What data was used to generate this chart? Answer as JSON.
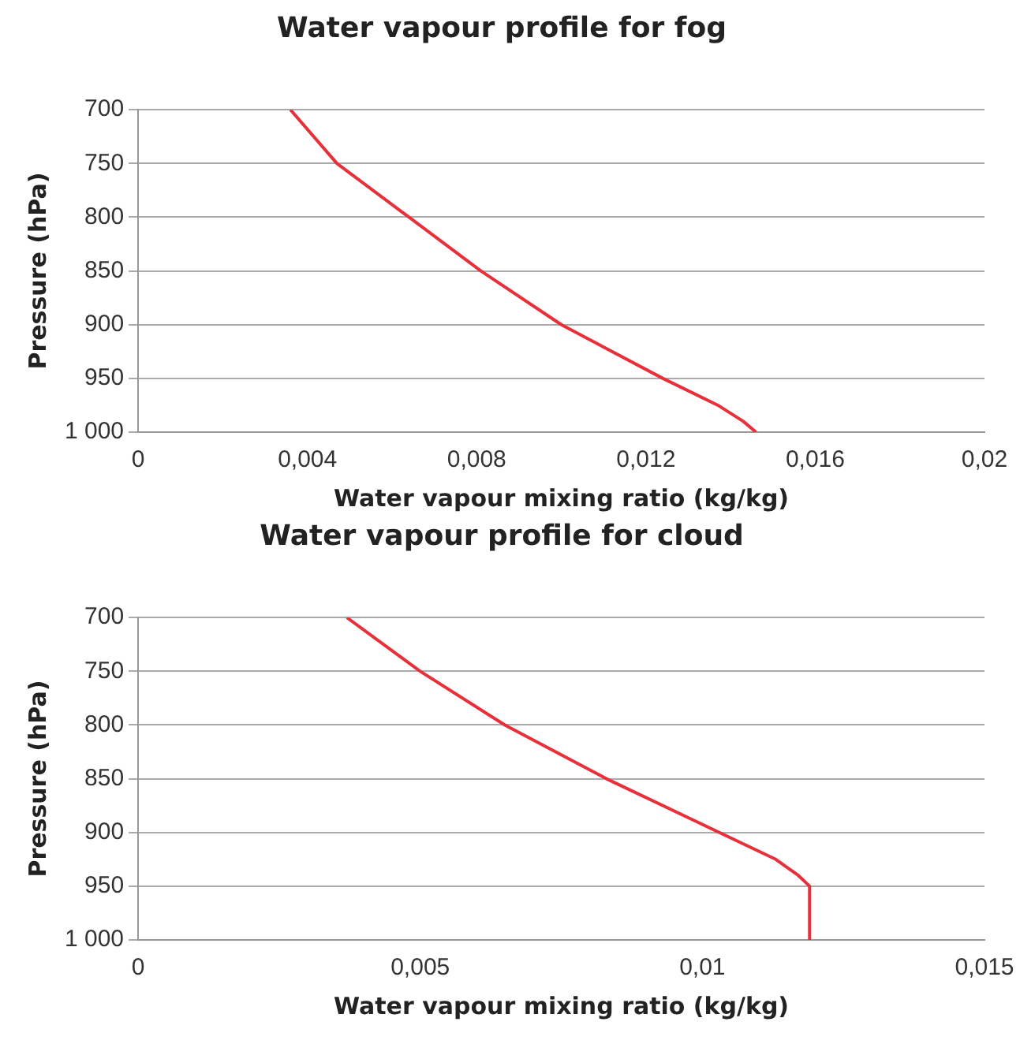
{
  "chart_data": [
    {
      "type": "line",
      "title": "Water vapour profile for fog",
      "xlabel": "Water vapour mixing ratio (kg/kg)",
      "ylabel": "Pressure (hPa)",
      "series": [
        {
          "color": "#e8303a",
          "x": [
            0.0036,
            0.0047,
            0.0064,
            0.0081,
            0.01,
            0.0124,
            0.0137,
            0.0143,
            0.0146
          ],
          "values": [
            700,
            750,
            800,
            850,
            900,
            950,
            975,
            990,
            1000
          ]
        }
      ],
      "xlim": [
        0,
        0.02
      ],
      "xticks": [
        0,
        {
          "value": 0.004,
          "label": "0,004"
        },
        {
          "value": 0.008,
          "label": "0,008"
        },
        {
          "value": 0.012,
          "label": "0,012"
        },
        {
          "value": 0.016,
          "label": "0,016"
        },
        {
          "value": 0.02,
          "label": "0,02"
        }
      ],
      "ylim": [
        1000,
        700
      ],
      "yticks": [
        700,
        750,
        800,
        850,
        900,
        950,
        {
          "value": 1000,
          "label": "1 000"
        }
      ],
      "grid": "y",
      "marker": "none"
    },
    {
      "type": "line",
      "title": "Water vapour profile for cloud",
      "xlabel": "Water vapour mixing ratio (kg/kg)",
      "ylabel": "Pressure (hPa)",
      "series": [
        {
          "color": "#e8303a",
          "x": [
            0.0037,
            0.005,
            0.0065,
            0.0083,
            0.0103,
            0.0113,
            0.0117,
            0.0119,
            0.0119
          ],
          "values": [
            700,
            750,
            800,
            850,
            900,
            925,
            940,
            950,
            1000
          ]
        }
      ],
      "xlim": [
        0,
        0.015
      ],
      "xticks": [
        0,
        {
          "value": 0.005,
          "label": "0,005"
        },
        {
          "value": 0.01,
          "label": "0,01"
        },
        {
          "value": 0.015,
          "label": "0,015"
        }
      ],
      "ylim": [
        1000,
        700
      ],
      "yticks": [
        700,
        750,
        800,
        850,
        900,
        950,
        {
          "value": 1000,
          "label": "1 000"
        }
      ],
      "grid": "y",
      "marker": "none"
    }
  ]
}
